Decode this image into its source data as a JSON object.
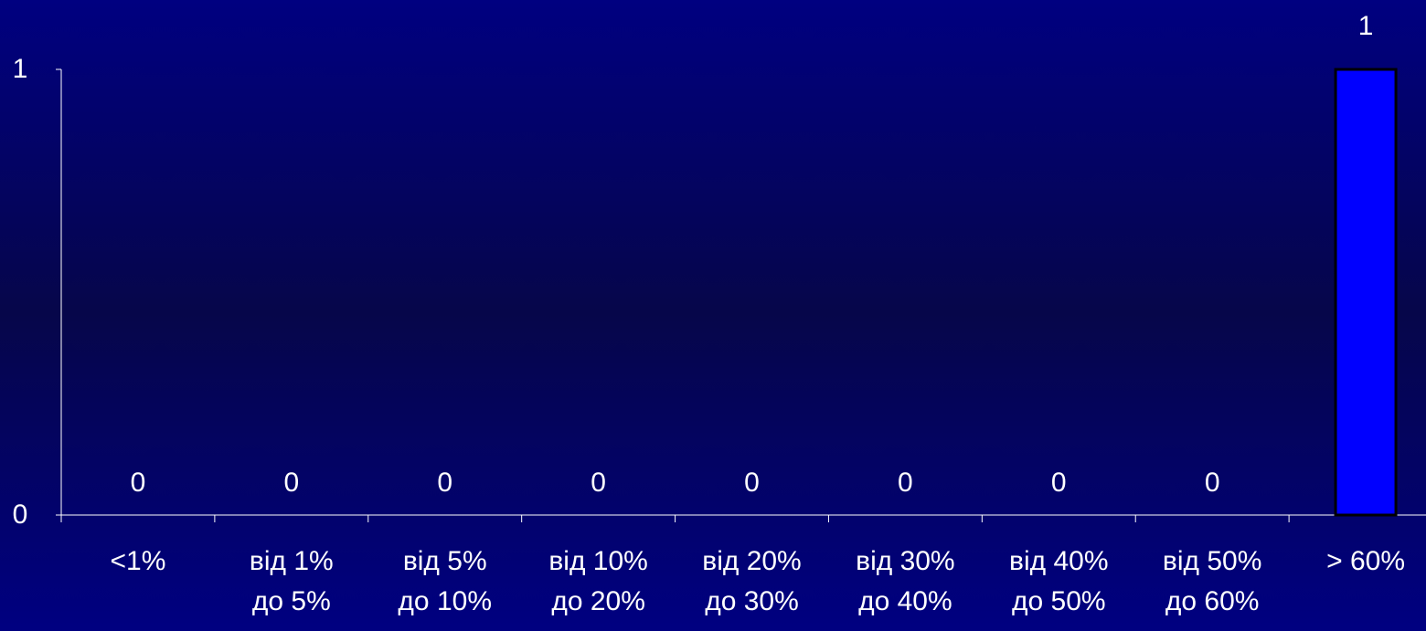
{
  "chart_data": {
    "type": "bar",
    "categories": [
      [
        "<1%"
      ],
      [
        "від 1%",
        "до 5%"
      ],
      [
        "від 5%",
        "до 10%"
      ],
      [
        "від 10%",
        "до 20%"
      ],
      [
        "від 20%",
        "до 30%"
      ],
      [
        "від 30%",
        "до 40%"
      ],
      [
        "від 40%",
        "до 50%"
      ],
      [
        "від 50%",
        "до 60%"
      ],
      [
        "> 60%"
      ]
    ],
    "values": [
      0,
      0,
      0,
      0,
      0,
      0,
      0,
      0,
      1
    ],
    "data_labels": [
      "0",
      "0",
      "0",
      "0",
      "0",
      "0",
      "0",
      "0",
      "1"
    ],
    "ylim": [
      0,
      1
    ],
    "yticks": [
      "0",
      "1"
    ],
    "grid": false,
    "legend": "none",
    "title": "",
    "xlabel": "",
    "ylabel": "",
    "colors": {
      "bar_fill": "#0000ff",
      "bar_stroke": "#000000",
      "axis": "#ffffff",
      "text": "#ffffff"
    }
  }
}
